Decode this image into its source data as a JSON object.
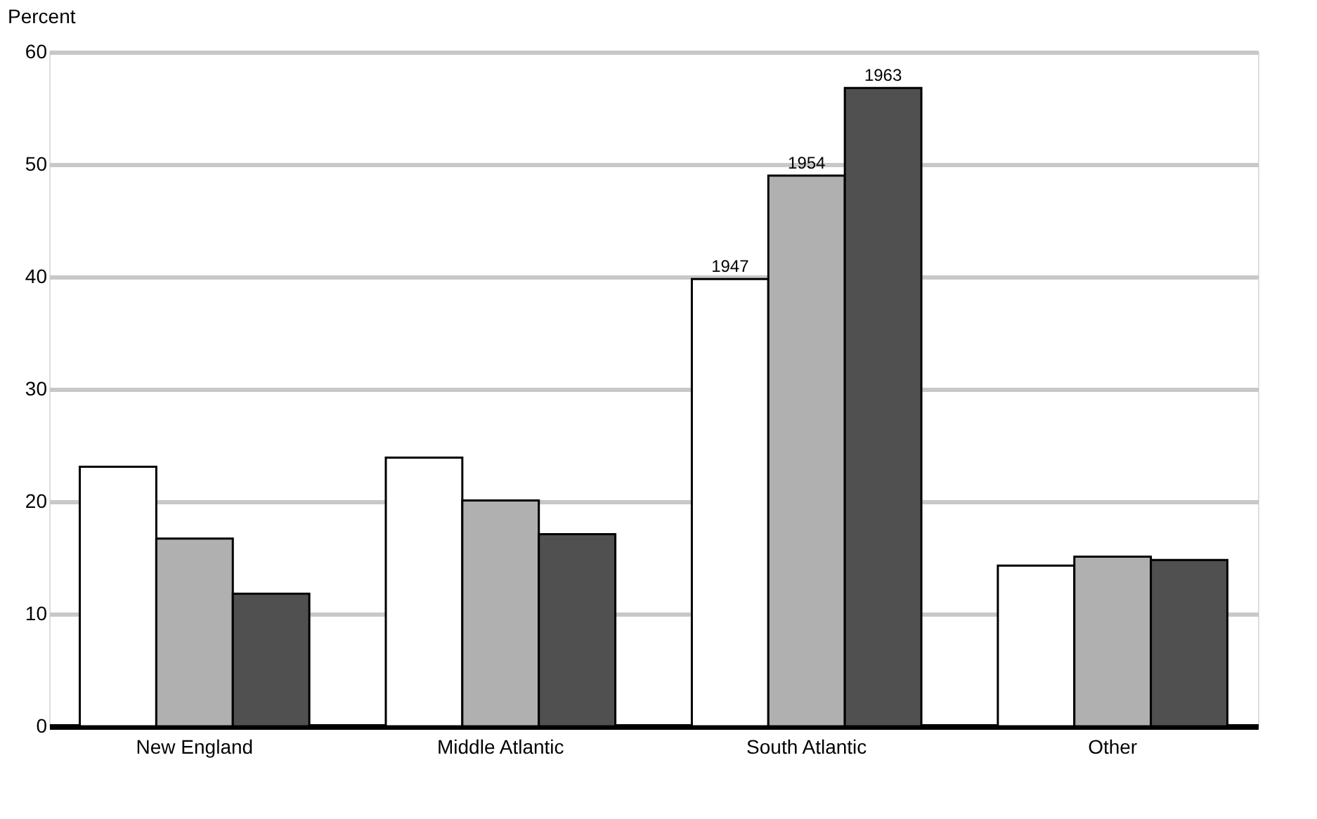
{
  "chart_data": {
    "type": "bar",
    "ylabel": "Percent",
    "categories": [
      "New England",
      "Middle Atlantic",
      "South Atlantic",
      "Other"
    ],
    "series": [
      {
        "name": "1947",
        "color": "#ffffff",
        "values": [
          23.1,
          23.9,
          39.8,
          14.3
        ]
      },
      {
        "name": "1954",
        "color": "#b0b0b0",
        "values": [
          16.7,
          20.1,
          49.0,
          15.1
        ]
      },
      {
        "name": "1963",
        "color": "#505050",
        "values": [
          11.8,
          17.1,
          56.8,
          14.8
        ]
      }
    ],
    "ylim": [
      0,
      60
    ],
    "yticks": [
      0,
      10,
      20,
      30,
      40,
      50,
      60
    ],
    "grid": "y",
    "legend": false
  }
}
